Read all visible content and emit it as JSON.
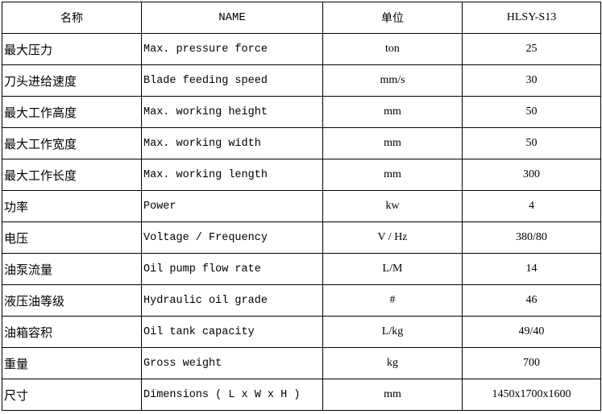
{
  "table": {
    "header": [
      "名称",
      "NAME",
      "单位",
      "HLSY-S13"
    ],
    "rows": [
      [
        "最大压力",
        "Max. pressure force",
        "ton",
        "25"
      ],
      [
        "刀头进给速度",
        "Blade feeding speed",
        "mm/s",
        "30"
      ],
      [
        "最大工作高度",
        "Max. working height",
        "mm",
        "50"
      ],
      [
        "最大工作宽度",
        "Max. working width",
        "mm",
        "50"
      ],
      [
        "最大工作长度",
        "Max. working length",
        "mm",
        "300"
      ],
      [
        "功率",
        "Power",
        "kw",
        "4"
      ],
      [
        "电压",
        "Voltage / Frequency",
        "V / Hz",
        "380/80"
      ],
      [
        "油泵流量",
        "Oil pump flow rate",
        "L/M",
        "14"
      ],
      [
        "液压油等级",
        "Hydraulic oil grade",
        "#",
        "46"
      ],
      [
        "油箱容积",
        "Oil tank capacity",
        "L/kg",
        "49/40"
      ],
      [
        "重量",
        "Gross weight",
        "kg",
        "700"
      ],
      [
        "尺寸",
        "Dimensions ( L x W x H )",
        "mm",
        "1450x1700x1600"
      ]
    ]
  }
}
